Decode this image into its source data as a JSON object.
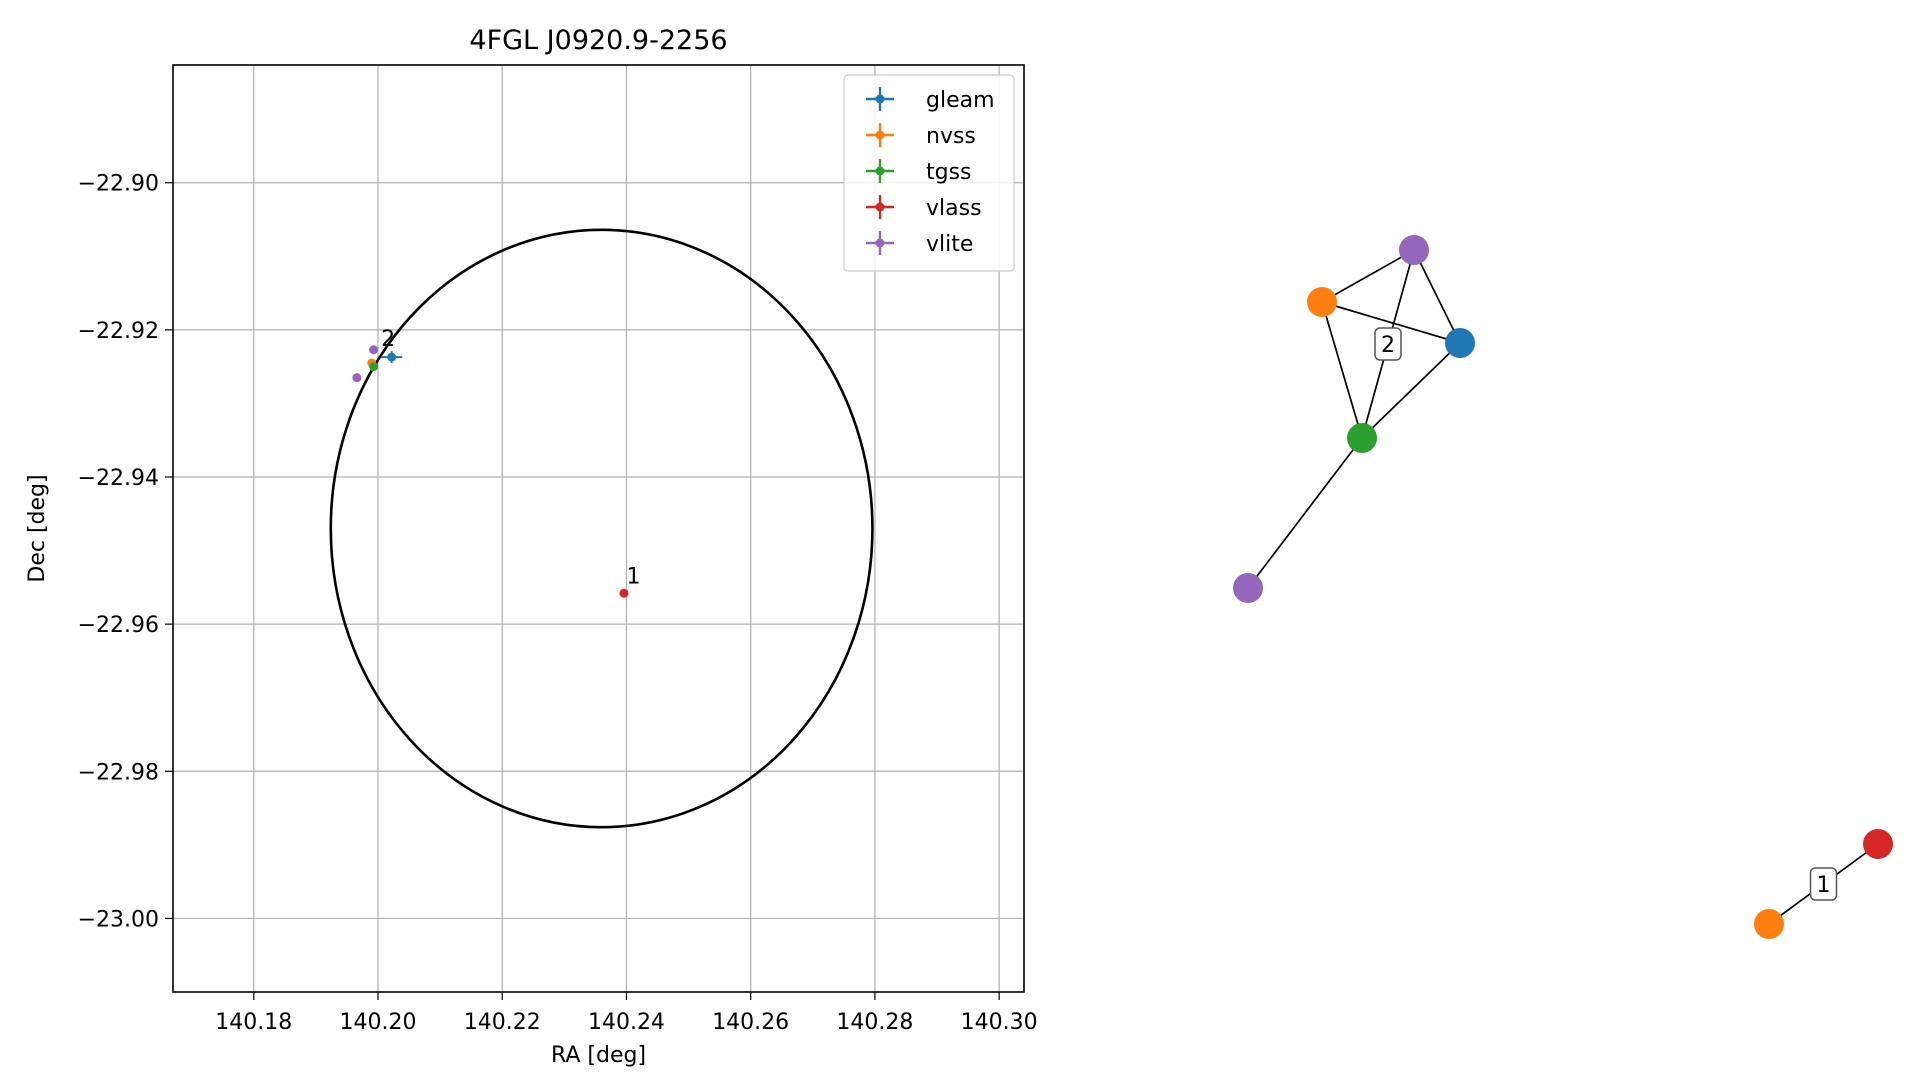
{
  "chart_data": [
    {
      "type": "scatter",
      "title": "4FGL J0920.9-2256",
      "xlabel": "RA [deg]",
      "ylabel": "Dec [deg]",
      "xlim": [
        140.167,
        140.304
      ],
      "ylim": [
        -23.01,
        -22.884
      ],
      "xticks": [
        140.18,
        140.2,
        140.22,
        140.24,
        140.26,
        140.28,
        140.3
      ],
      "xtick_labels": [
        "140.18",
        "140.20",
        "140.22",
        "140.24",
        "140.26",
        "140.28",
        "140.30"
      ],
      "yticks": [
        -22.9,
        -22.92,
        -22.94,
        -22.96,
        -22.98,
        -23.0
      ],
      "ytick_labels": [
        "−22.90",
        "−22.92",
        "−22.94",
        "−22.96",
        "−22.98",
        "−23.00"
      ],
      "grid": true,
      "legend_position": "top-right",
      "ellipse": {
        "center": [
          140.236,
          -22.947
        ],
        "semi_axis_ra": 0.0436,
        "semi_axis_dec": 0.0406,
        "color": "#000000"
      },
      "series": [
        {
          "name": "gleam",
          "color": "#1f77b4",
          "points": [
            {
              "x": 140.2022,
              "y": -22.9237,
              "xerr": 0.0017,
              "yerr": 0.0008
            }
          ]
        },
        {
          "name": "nvss",
          "color": "#ff7f0e",
          "points": [
            {
              "x": 140.199,
              "y": -22.9245,
              "xerr": 0.0003,
              "yerr": 0.0003
            }
          ]
        },
        {
          "name": "tgss",
          "color": "#2ca02c",
          "points": [
            {
              "x": 140.1993,
              "y": -22.925,
              "xerr": 0.0003,
              "yerr": 0.0003
            }
          ]
        },
        {
          "name": "vlass",
          "color": "#d62728",
          "points": [
            {
              "x": 140.2396,
              "y": -22.9558,
              "xerr": 0.0004,
              "yerr": 0.0002
            }
          ]
        },
        {
          "name": "vlite",
          "color": "#9467bd",
          "points": [
            {
              "x": 140.1993,
              "y": -22.9227,
              "xerr": 0.0002,
              "yerr": 0.0002
            },
            {
              "x": 140.1966,
              "y": -22.9265,
              "xerr": 0.0002,
              "yerr": 0.0002
            }
          ]
        }
      ],
      "annotations": [
        {
          "text": "1",
          "x": 140.24,
          "y": -22.9545
        },
        {
          "text": "2",
          "x": 140.2005,
          "y": -22.9222
        }
      ]
    },
    {
      "type": "network",
      "nodes": [
        {
          "id": "vlite_a",
          "color": "#9467bd"
        },
        {
          "id": "nvss_a",
          "color": "#ff7f0e"
        },
        {
          "id": "gleam_a",
          "color": "#1f77b4"
        },
        {
          "id": "tgss_a",
          "color": "#2ca02c"
        },
        {
          "id": "vlite_b",
          "color": "#9467bd"
        },
        {
          "id": "vlass_a",
          "color": "#d62728"
        },
        {
          "id": "nvss_b",
          "color": "#ff7f0e"
        }
      ],
      "edges": [
        [
          "nvss_a",
          "vlite_a"
        ],
        [
          "nvss_a",
          "gleam_a"
        ],
        [
          "nvss_a",
          "tgss_a"
        ],
        [
          "vlite_a",
          "gleam_a"
        ],
        [
          "vlite_a",
          "tgss_a"
        ],
        [
          "gleam_a",
          "tgss_a"
        ],
        [
          "tgss_a",
          "vlite_b"
        ],
        [
          "nvss_b",
          "vlass_a"
        ]
      ],
      "cluster_labels": [
        {
          "text": "2",
          "on_edge": [
            "vlite_a",
            "tgss_a"
          ]
        },
        {
          "text": "1",
          "on_edge": [
            "nvss_b",
            "vlass_a"
          ]
        }
      ]
    }
  ]
}
